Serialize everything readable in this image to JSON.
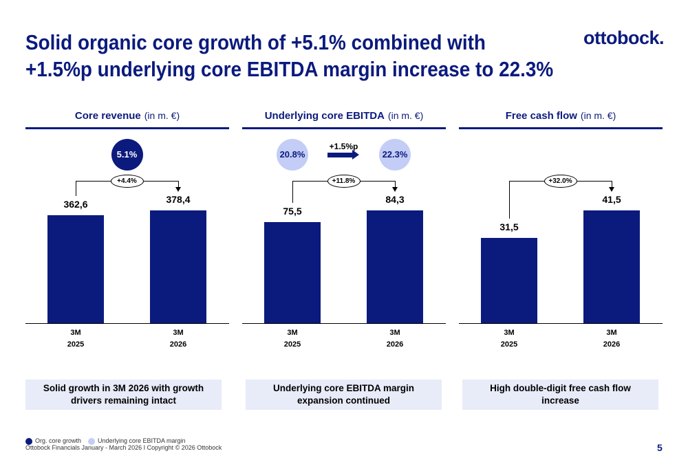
{
  "title": [
    "Solid organic core growth of +5.1% combined with",
    "+1.5%p underlying core EBITDA margin increase to 22.3%"
  ],
  "logo": "ottobock.",
  "legend": [
    {
      "name": "Org. core growth",
      "color": "#0b1a7d"
    },
    {
      "name": "Underlying core EBITDA margin",
      "color": "#c3cdf6"
    }
  ],
  "footer": "Ottobock Financials January - March 2026 I Copyright © 2026 Ottobock",
  "page_number": "5",
  "chart_data": [
    {
      "type": "bar",
      "title": "Core revenue",
      "unit": "(in m. €)",
      "categories": [
        "3M 2025",
        "3M 2026"
      ],
      "values": [
        362.6,
        378.4
      ],
      "value_labels": [
        "362,6",
        "378,4"
      ],
      "color": "#0b1a7d",
      "growth_label": "+4.4%",
      "circles": [
        "5.1%"
      ],
      "circle_color": "#0b1a7d",
      "caption": "Solid growth in 3M 2026 with growth drivers remaining intact"
    },
    {
      "type": "bar",
      "title": "Underlying core EBITDA",
      "unit": "(in m. €)",
      "categories": [
        "3M 2025",
        "3M 2026"
      ],
      "values": [
        75.5,
        84.3
      ],
      "value_labels": [
        "75,5",
        "84,3"
      ],
      "color": "#0b1a7d",
      "growth_label": "+11.8%",
      "circles": [
        "20.8%",
        "22.3%"
      ],
      "circle_color": "#c3cdf6",
      "circle_change": "+1.5%p",
      "caption": "Underlying core EBITDA margin expansion continued"
    },
    {
      "type": "bar",
      "title": "Free cash flow",
      "unit": "(in m. €)",
      "categories": [
        "3M 2025",
        "3M 2026"
      ],
      "values": [
        31.5,
        41.5
      ],
      "value_labels": [
        "31,5",
        "41,5"
      ],
      "color": "#0b1a7d",
      "growth_label": "+32.0%",
      "caption": "High double-digit free cash flow increase"
    }
  ]
}
